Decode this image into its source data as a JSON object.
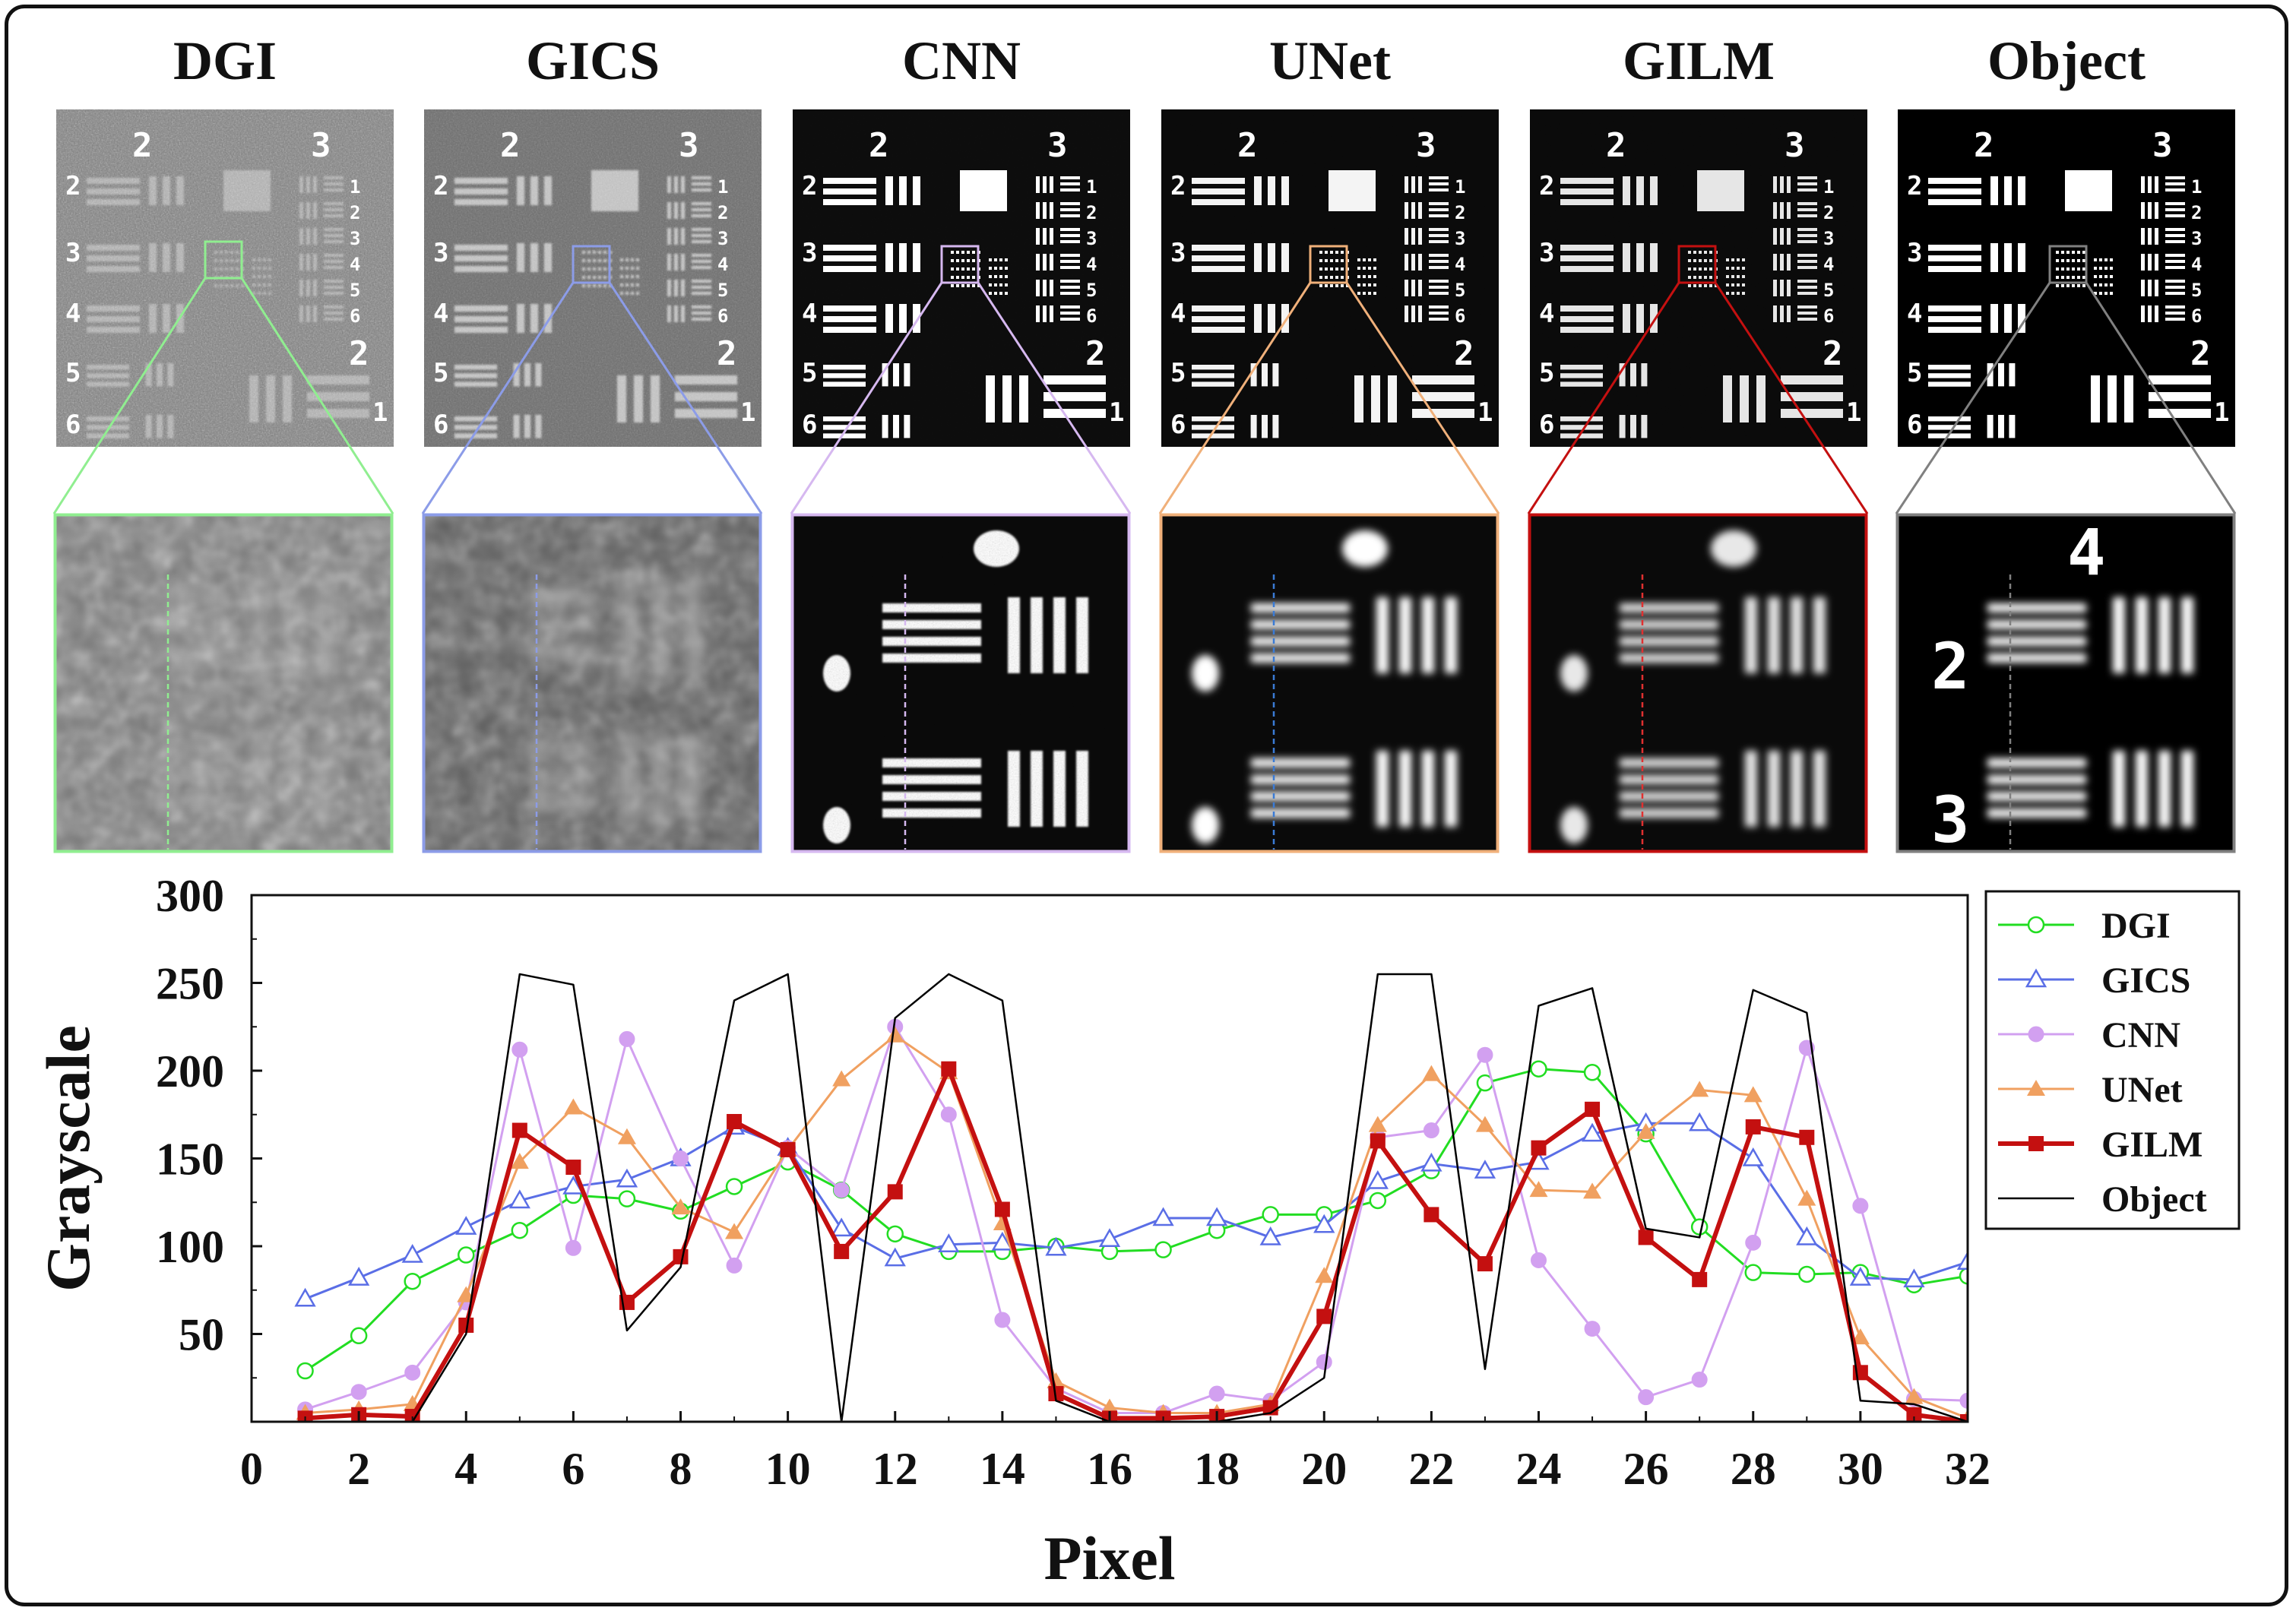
{
  "panels": [
    {
      "title": "DGI",
      "color": "#90ee90"
    },
    {
      "title": "GICS",
      "color": "#8c9ce8"
    },
    {
      "title": "CNN",
      "color": "#d6b8f0"
    },
    {
      "title": "UNet",
      "color": "#f0b07a"
    },
    {
      "title": "GILM",
      "color": "#c41010"
    },
    {
      "title": "Object",
      "color": "#808080"
    }
  ],
  "target_labels": {
    "group_a": "2",
    "group_b": "3",
    "group_c": "2",
    "rows_left": [
      "2",
      "3",
      "4",
      "5",
      "6"
    ],
    "rows_right": [
      "1",
      "2",
      "3",
      "4",
      "5",
      "6"
    ],
    "bottom_right": "1",
    "zoom_digits": [
      "4",
      "2",
      "3"
    ]
  },
  "chart_data": {
    "type": "line",
    "xlabel": "Pixel",
    "ylabel": "Grayscale",
    "xlim": [
      0,
      32
    ],
    "ylim": [
      0,
      300
    ],
    "xticks": [
      "0",
      "2",
      "4",
      "6",
      "8",
      "10",
      "12",
      "14",
      "16",
      "18",
      "20",
      "22",
      "24",
      "26",
      "28",
      "30",
      "32"
    ],
    "yticks": [
      "50",
      "100",
      "150",
      "200",
      "250",
      "300"
    ],
    "legend_position": "right",
    "series": [
      {
        "name": "DGI",
        "color": "#22dd22",
        "marker": "open-circle",
        "x": [
          1,
          2,
          3,
          4,
          5,
          6,
          7,
          8,
          9,
          10,
          11,
          12,
          13,
          14,
          15,
          16,
          17,
          18,
          19,
          20,
          21,
          22,
          23,
          24,
          25,
          26,
          27,
          28,
          29,
          30,
          31,
          32
        ],
        "y": [
          29,
          49,
          80,
          95,
          109,
          129,
          127,
          120,
          134,
          148,
          132,
          107,
          97,
          97,
          100,
          97,
          98,
          109,
          118,
          118,
          126,
          143,
          193,
          201,
          199,
          164,
          111,
          85,
          84,
          85,
          78,
          83
        ]
      },
      {
        "name": "GICS",
        "color": "#5a6ee6",
        "marker": "open-triangle",
        "x": [
          1,
          2,
          3,
          4,
          5,
          6,
          7,
          8,
          9,
          10,
          11,
          12,
          13,
          14,
          15,
          16,
          17,
          18,
          19,
          20,
          21,
          22,
          23,
          24,
          25,
          26,
          27,
          28,
          29,
          30,
          31,
          32
        ],
        "y": [
          70,
          82,
          95,
          111,
          126,
          134,
          138,
          150,
          168,
          156,
          110,
          93,
          101,
          102,
          99,
          104,
          116,
          116,
          105,
          112,
          137,
          147,
          143,
          148,
          164,
          170,
          170,
          150,
          105,
          82,
          81,
          91
        ]
      },
      {
        "name": "CNN",
        "color": "#d2a0f0",
        "marker": "filled-circle",
        "x": [
          1,
          2,
          3,
          4,
          5,
          6,
          7,
          8,
          9,
          10,
          11,
          12,
          13,
          14,
          15,
          16,
          17,
          18,
          19,
          20,
          21,
          22,
          23,
          24,
          25,
          26,
          27,
          28,
          29,
          30,
          31,
          32
        ],
        "y": [
          7,
          17,
          28,
          68,
          212,
          99,
          218,
          150,
          89,
          156,
          132,
          225,
          175,
          58,
          19,
          5,
          5,
          16,
          12,
          34,
          162,
          166,
          209,
          92,
          53,
          14,
          24,
          102,
          213,
          123,
          13,
          12
        ]
      },
      {
        "name": "UNet",
        "color": "#f0a060",
        "marker": "filled-triangle",
        "x": [
          1,
          2,
          3,
          4,
          5,
          6,
          7,
          8,
          9,
          10,
          11,
          12,
          13,
          14,
          15,
          16,
          17,
          18,
          19,
          20,
          21,
          22,
          23,
          24,
          25,
          26,
          27,
          28,
          29,
          30,
          31,
          32
        ],
        "y": [
          5,
          7,
          10,
          72,
          148,
          179,
          162,
          122,
          108,
          155,
          195,
          220,
          199,
          113,
          23,
          8,
          5,
          5,
          10,
          83,
          169,
          198,
          169,
          132,
          131,
          165,
          189,
          186,
          127,
          48,
          14,
          2
        ]
      },
      {
        "name": "GILM",
        "color": "#c41010",
        "marker": "filled-square",
        "x": [
          1,
          2,
          3,
          4,
          5,
          6,
          7,
          8,
          9,
          10,
          11,
          12,
          13,
          14,
          15,
          16,
          17,
          18,
          19,
          20,
          21,
          22,
          23,
          24,
          25,
          26,
          27,
          28,
          29,
          30,
          31,
          32
        ],
        "y": [
          2,
          4,
          3,
          55,
          166,
          145,
          68,
          94,
          171,
          155,
          97,
          131,
          201,
          121,
          16,
          2,
          2,
          3,
          8,
          60,
          160,
          118,
          90,
          156,
          178,
          105,
          81,
          168,
          162,
          28,
          4,
          0
        ]
      },
      {
        "name": "Object",
        "color": "#000000",
        "marker": "none",
        "x": [
          1,
          2,
          3,
          4,
          5,
          6,
          7,
          8,
          9,
          10,
          11,
          12,
          13,
          14,
          15,
          16,
          17,
          18,
          19,
          20,
          21,
          22,
          23,
          24,
          25,
          26,
          27,
          28,
          29,
          30,
          31,
          32
        ],
        "y": [
          0,
          0,
          0,
          50,
          255,
          249,
          52,
          88,
          240,
          255,
          0,
          230,
          255,
          240,
          12,
          0,
          0,
          0,
          5,
          25,
          255,
          255,
          30,
          237,
          247,
          110,
          105,
          246,
          233,
          12,
          10,
          0
        ]
      }
    ]
  }
}
